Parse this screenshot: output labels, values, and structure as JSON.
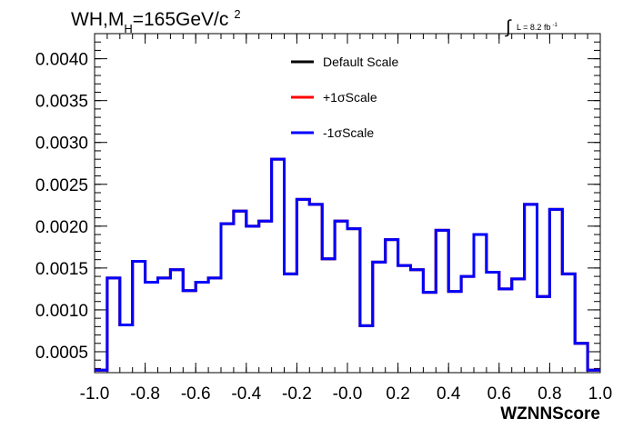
{
  "chart_data": {
    "type": "line",
    "title": {
      "prefix": "WH,M",
      "subscript": "H",
      "mass": "=165GeV/c",
      "superscript": "2"
    },
    "lumi": {
      "integral": "∫",
      "text": "L = 8.2 fb",
      "superscript": "-1"
    },
    "xlabel": "WZNNScore",
    "ylabel": "",
    "xlim": [
      -1.0,
      1.0
    ],
    "ylim": [
      0.00025,
      0.0043
    ],
    "x_ticks": [
      "-1.0",
      "-0.8",
      "-0.6",
      "-0.4",
      "-0.2",
      "-0.0",
      "0.2",
      "0.4",
      "0.6",
      "0.8",
      "1.0"
    ],
    "x_tick_values": [
      -1.0,
      -0.8,
      -0.6,
      -0.4,
      -0.2,
      0.0,
      0.2,
      0.4,
      0.6,
      0.8,
      1.0
    ],
    "y_ticks": [
      "0.0005",
      "0.0010",
      "0.0015",
      "0.0020",
      "0.0025",
      "0.0030",
      "0.0035",
      "0.0040"
    ],
    "y_tick_values": [
      0.0005,
      0.001,
      0.0015,
      0.002,
      0.0025,
      0.003,
      0.0035,
      0.004
    ],
    "bin_edges": [
      -1.0,
      -0.95,
      -0.9,
      -0.85,
      -0.8,
      -0.75,
      -0.7,
      -0.65,
      -0.6,
      -0.55,
      -0.5,
      -0.45,
      -0.4,
      -0.35,
      -0.3,
      -0.25,
      -0.2,
      -0.15,
      -0.1,
      -0.05,
      0.0,
      0.05,
      0.1,
      0.15,
      0.2,
      0.25,
      0.3,
      0.35,
      0.4,
      0.45,
      0.5,
      0.55,
      0.6,
      0.65,
      0.7,
      0.75,
      0.8,
      0.85,
      0.9,
      0.95,
      1.0
    ],
    "series": [
      {
        "name": "Default Scale",
        "color": "#000000",
        "values": [
          0.00028,
          0.00138,
          0.00082,
          0.00158,
          0.00133,
          0.00138,
          0.00148,
          0.00123,
          0.00133,
          0.00138,
          0.00203,
          0.00218,
          0.002,
          0.00206,
          0.0028,
          0.00143,
          0.00232,
          0.00226,
          0.00161,
          0.00206,
          0.00197,
          0.00081,
          0.00157,
          0.00184,
          0.00153,
          0.00148,
          0.00121,
          0.00195,
          0.00122,
          0.0014,
          0.0019,
          0.00145,
          0.00125,
          0.00137,
          0.00226,
          0.00116,
          0.0022,
          0.00143,
          0.0006,
          0.00028
        ]
      },
      {
        "name": "+1σScale",
        "color": "#ff0000",
        "values": [
          0.00028,
          0.00138,
          0.00082,
          0.00158,
          0.00133,
          0.00138,
          0.00148,
          0.00123,
          0.00133,
          0.00138,
          0.00203,
          0.00218,
          0.002,
          0.00206,
          0.0028,
          0.00143,
          0.00232,
          0.00226,
          0.00161,
          0.00206,
          0.00197,
          0.00081,
          0.00157,
          0.00184,
          0.00153,
          0.00148,
          0.00121,
          0.00195,
          0.00122,
          0.0014,
          0.0019,
          0.00145,
          0.00125,
          0.00137,
          0.00226,
          0.00116,
          0.0022,
          0.00143,
          0.0006,
          0.00028
        ]
      },
      {
        "name": "-1σScale",
        "color": "#0000ff",
        "values": [
          0.00028,
          0.00138,
          0.00082,
          0.00158,
          0.00133,
          0.00138,
          0.00148,
          0.00123,
          0.00133,
          0.00138,
          0.00203,
          0.00218,
          0.002,
          0.00206,
          0.0028,
          0.00143,
          0.00232,
          0.00226,
          0.00161,
          0.00206,
          0.00197,
          0.00081,
          0.00157,
          0.00184,
          0.00153,
          0.00148,
          0.00121,
          0.00195,
          0.00122,
          0.0014,
          0.0019,
          0.00145,
          0.00125,
          0.00137,
          0.00226,
          0.00116,
          0.0022,
          0.00143,
          0.0006,
          0.00028
        ]
      }
    ],
    "grid": false,
    "legend_position": "top-center"
  }
}
